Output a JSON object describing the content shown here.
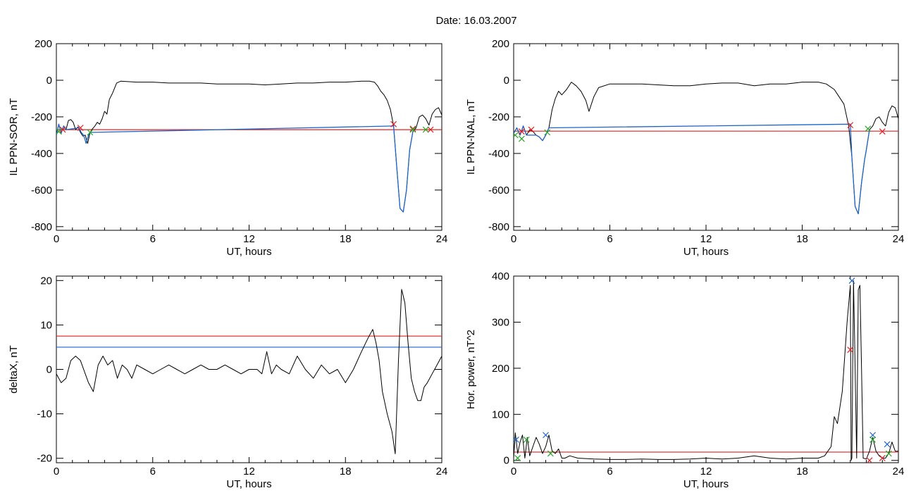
{
  "page": {
    "title": "Date:  16.03.2007"
  },
  "chart_data": [
    {
      "type": "line",
      "id": "sor",
      "xlabel": "UT, hours",
      "ylabel": "IL PPN-SOR, nT",
      "xlim": [
        0,
        24
      ],
      "ylim": [
        -820,
        200
      ],
      "xticks": [
        0,
        6,
        12,
        18,
        24
      ],
      "yticks": [
        -800,
        -600,
        -400,
        -200,
        0,
        200
      ],
      "grid": false,
      "thresholds": [
        {
          "value": -270,
          "color": "#e02020"
        }
      ],
      "series": [
        {
          "color": "#000000",
          "x": [
            0,
            0.15,
            0.3,
            0.45,
            0.6,
            0.75,
            0.9,
            1.05,
            1.2,
            1.35,
            1.5,
            1.65,
            1.8,
            1.95,
            2.1,
            2.25,
            2.4,
            2.55,
            2.7,
            2.85,
            3.0,
            3.15,
            3.3,
            3.5,
            3.75,
            4.0,
            5,
            6,
            7,
            8,
            9,
            10,
            11,
            12,
            13,
            14,
            15,
            16,
            17,
            18,
            19,
            19.5,
            19.8,
            20.0,
            20.2,
            20.4,
            20.6,
            20.8,
            21.0,
            21.2,
            21.4,
            21.6,
            21.8,
            22.0,
            22.2,
            22.4,
            22.6,
            22.8,
            23.0,
            23.2,
            23.4,
            23.6,
            23.8,
            24
          ],
          "y": [
            -300,
            -240,
            -290,
            -250,
            -270,
            -220,
            -215,
            -230,
            -270,
            -255,
            -285,
            -305,
            -300,
            -345,
            -285,
            -265,
            -250,
            -230,
            -240,
            -210,
            -170,
            -185,
            -105,
            -70,
            -15,
            -5,
            -10,
            -10,
            -15,
            -15,
            -15,
            -20,
            -20,
            -20,
            -25,
            -20,
            -15,
            -15,
            -10,
            -10,
            -5,
            -5,
            -10,
            -30,
            -60,
            -80,
            -110,
            -160,
            -250,
            -480,
            -700,
            -720,
            -600,
            -380,
            -280,
            -260,
            -200,
            -190,
            -210,
            -245,
            -185,
            -160,
            -150,
            -190
          ]
        },
        {
          "color": "#1e64c8",
          "x": [
            0,
            0.15,
            0.3,
            0.45,
            0.6,
            1.4,
            1.55,
            1.7,
            1.85,
            2.0,
            2.1,
            21.0,
            21.2,
            21.4,
            21.6,
            21.8,
            22.0,
            22.2
          ],
          "y": [
            -300,
            -240,
            -290,
            -250,
            -270,
            -260,
            -285,
            -300,
            -345,
            -300,
            -285,
            -250,
            -480,
            -700,
            -720,
            -600,
            -380,
            -280
          ]
        }
      ],
      "markers": [
        {
          "x": 0.4,
          "y": -270,
          "color": "#e02020"
        },
        {
          "x": 1.5,
          "y": -260,
          "color": "#e02020"
        },
        {
          "x": 21.0,
          "y": -240,
          "color": "#e02020"
        },
        {
          "x": 22.2,
          "y": -265,
          "color": "#e02020"
        },
        {
          "x": 23.3,
          "y": -270,
          "color": "#e02020"
        },
        {
          "x": 0.15,
          "y": -280,
          "color": "#22aa22"
        },
        {
          "x": 2.1,
          "y": -285,
          "color": "#22aa22"
        },
        {
          "x": 22.2,
          "y": -270,
          "color": "#22aa22"
        },
        {
          "x": 23.0,
          "y": -270,
          "color": "#22aa22"
        }
      ]
    },
    {
      "type": "line",
      "id": "nal",
      "xlabel": "UT, hours",
      "ylabel": "IL PPN-NAL, nT",
      "xlim": [
        0,
        24
      ],
      "ylim": [
        -820,
        200
      ],
      "xticks": [
        0,
        6,
        12,
        18,
        24
      ],
      "yticks": [
        -800,
        -600,
        -400,
        -200,
        0,
        200
      ],
      "grid": false,
      "thresholds": [
        {
          "value": -278,
          "color": "#e02020"
        }
      ],
      "series": [
        {
          "color": "#000000",
          "x": [
            0,
            0.2,
            0.4,
            0.6,
            0.8,
            1.0,
            1.2,
            1.4,
            1.6,
            1.8,
            2.0,
            2.2,
            2.4,
            2.6,
            2.8,
            3.0,
            3.3,
            3.6,
            3.9,
            4.2,
            4.5,
            4.7,
            5.0,
            5.3,
            6,
            7,
            8,
            9,
            10,
            11,
            12,
            13,
            14,
            15,
            16,
            17,
            18,
            19,
            19.5,
            20.0,
            20.3,
            20.6,
            20.9,
            21.1,
            21.3,
            21.5,
            21.7,
            21.9,
            22.0,
            22.2,
            22.4,
            22.6,
            22.8,
            23.0,
            23.2,
            23.4,
            23.6,
            23.8,
            24
          ],
          "y": [
            -290,
            -260,
            -300,
            -250,
            -300,
            -270,
            -280,
            -300,
            -310,
            -330,
            -300,
            -260,
            -160,
            -100,
            -60,
            -80,
            -50,
            -10,
            -30,
            -60,
            -110,
            -170,
            -90,
            -40,
            -20,
            -20,
            -20,
            -25,
            -30,
            -30,
            -20,
            -15,
            -15,
            -30,
            -20,
            -20,
            -10,
            -10,
            -20,
            -50,
            -90,
            -130,
            -250,
            -420,
            -690,
            -730,
            -560,
            -430,
            -380,
            -270,
            -250,
            -210,
            -200,
            -230,
            -250,
            -175,
            -140,
            -150,
            -210
          ]
        },
        {
          "color": "#1e64c8",
          "x": [
            0,
            0.2,
            0.4,
            0.6,
            0.8,
            1.4,
            1.6,
            1.8,
            2.0,
            2.2,
            21.0,
            21.1,
            21.3,
            21.5,
            21.7,
            21.9,
            22.0,
            22.2
          ],
          "y": [
            -290,
            -260,
            -300,
            -250,
            -300,
            -300,
            -310,
            -330,
            -300,
            -260,
            -240,
            -420,
            -690,
            -730,
            -560,
            -430,
            -380,
            -270
          ]
        }
      ],
      "markers": [
        {
          "x": 0.5,
          "y": -280,
          "color": "#e02020"
        },
        {
          "x": 1.1,
          "y": -270,
          "color": "#e02020"
        },
        {
          "x": 21.0,
          "y": -245,
          "color": "#e02020"
        },
        {
          "x": 23.0,
          "y": -280,
          "color": "#e02020"
        },
        {
          "x": 0.1,
          "y": -300,
          "color": "#22aa22"
        },
        {
          "x": 0.5,
          "y": -320,
          "color": "#22aa22"
        },
        {
          "x": 2.1,
          "y": -285,
          "color": "#22aa22"
        },
        {
          "x": 22.1,
          "y": -265,
          "color": "#22aa22"
        }
      ]
    },
    {
      "type": "line",
      "id": "deltax",
      "xlabel": "UT, hours",
      "ylabel": "deltaX, nT",
      "xlim": [
        0,
        24
      ],
      "ylim": [
        -21,
        21
      ],
      "xticks": [
        0,
        6,
        12,
        18,
        24
      ],
      "yticks": [
        -20,
        -10,
        0,
        10,
        20
      ],
      "grid": false,
      "thresholds": [
        {
          "value": 7.5,
          "color": "#e02020"
        },
        {
          "value": 5,
          "color": "#1e64c8"
        }
      ],
      "series": [
        {
          "color": "#000000",
          "x": [
            0,
            0.3,
            0.6,
            0.9,
            1.2,
            1.5,
            1.8,
            2.0,
            2.3,
            2.6,
            2.9,
            3.2,
            3.5,
            3.8,
            4.1,
            4.4,
            4.7,
            5,
            5.5,
            6,
            6.5,
            7,
            7.5,
            8,
            8.5,
            9,
            9.5,
            10,
            10.5,
            11,
            11.5,
            12,
            12.5,
            12.8,
            13.1,
            13.4,
            13.7,
            14,
            14.5,
            15,
            15.5,
            16,
            16.5,
            17,
            17.5,
            18,
            18.5,
            19,
            19.4,
            19.7,
            19.9,
            20.1,
            20.3,
            20.6,
            20.9,
            21.1,
            21.3,
            21.5,
            21.7,
            21.9,
            22.1,
            22.3,
            22.5,
            22.7,
            22.9,
            23.1,
            23.4,
            23.7,
            24
          ],
          "y": [
            -1,
            -3,
            -2,
            2,
            3,
            2,
            -1,
            -3,
            -5,
            1,
            3,
            1,
            2,
            -2,
            1,
            0,
            -2,
            1,
            0,
            -1,
            0,
            1,
            0,
            -1,
            0,
            1,
            0,
            0,
            1,
            0,
            -1,
            0,
            0,
            -1,
            4,
            -1,
            1,
            0,
            -1,
            3,
            0,
            -2,
            1,
            -1,
            0,
            -3,
            0,
            4,
            7,
            9,
            6,
            2,
            -5,
            -10,
            -14,
            -19,
            2,
            18,
            15,
            6,
            -2,
            -5,
            -7,
            -7,
            -4,
            -3,
            -1,
            1,
            3
          ]
        }
      ],
      "markers": []
    },
    {
      "type": "line",
      "id": "hpower",
      "xlabel": "UT, hours",
      "ylabel": "Hor. power, nT^2",
      "xlim": [
        0,
        24
      ],
      "ylim": [
        -5,
        400
      ],
      "xticks": [
        0,
        6,
        12,
        18,
        24
      ],
      "yticks": [
        0,
        100,
        200,
        300,
        400
      ],
      "grid": false,
      "thresholds": [
        {
          "value": 18,
          "color": "#e02020"
        }
      ],
      "series": [
        {
          "color": "#000000",
          "x": [
            0,
            0.1,
            0.25,
            0.4,
            0.55,
            0.7,
            0.85,
            1.0,
            1.2,
            1.4,
            1.6,
            1.8,
            2.0,
            2.2,
            2.4,
            2.6,
            2.8,
            3.0,
            3.2,
            3.5,
            4,
            5,
            6,
            7,
            8,
            9,
            10,
            11,
            12,
            13,
            14,
            15,
            16,
            17,
            18,
            19,
            19.4,
            19.8,
            20.0,
            20.2,
            20.5,
            20.8,
            21.0,
            21.05,
            21.1,
            21.2,
            21.3,
            21.4,
            21.5,
            21.6,
            21.7,
            21.8,
            22.0,
            22.2,
            22.4,
            22.6,
            22.8,
            23.0,
            23.2,
            23.4,
            23.6,
            23.8,
            24
          ],
          "y": [
            5,
            60,
            15,
            40,
            55,
            5,
            50,
            10,
            30,
            50,
            35,
            15,
            30,
            55,
            20,
            15,
            25,
            5,
            5,
            10,
            5,
            3,
            2,
            2,
            3,
            2,
            2,
            3,
            5,
            3,
            5,
            10,
            5,
            3,
            5,
            5,
            10,
            30,
            95,
            80,
            150,
            300,
            380,
            0,
            5,
            390,
            200,
            5,
            370,
            380,
            200,
            5,
            3,
            20,
            50,
            20,
            10,
            5,
            5,
            15,
            40,
            20,
            20
          ]
        }
      ],
      "markers": [
        {
          "x": 21.0,
          "y": 240,
          "color": "#e02020"
        },
        {
          "x": 22.2,
          "y": 0,
          "color": "#e02020"
        },
        {
          "x": 23.0,
          "y": 5,
          "color": "#e02020"
        },
        {
          "x": 0.15,
          "y": 45,
          "color": "#1e64c8"
        },
        {
          "x": 2.0,
          "y": 55,
          "color": "#1e64c8"
        },
        {
          "x": 21.1,
          "y": 390,
          "color": "#1e64c8"
        },
        {
          "x": 22.4,
          "y": 55,
          "color": "#1e64c8"
        },
        {
          "x": 23.3,
          "y": 35,
          "color": "#1e64c8"
        },
        {
          "x": 0.25,
          "y": 5,
          "color": "#22aa22"
        },
        {
          "x": 0.8,
          "y": 45,
          "color": "#22aa22"
        },
        {
          "x": 2.3,
          "y": 15,
          "color": "#22aa22"
        },
        {
          "x": 22.4,
          "y": 45,
          "color": "#22aa22"
        },
        {
          "x": 23.4,
          "y": 15,
          "color": "#22aa22"
        }
      ]
    }
  ]
}
